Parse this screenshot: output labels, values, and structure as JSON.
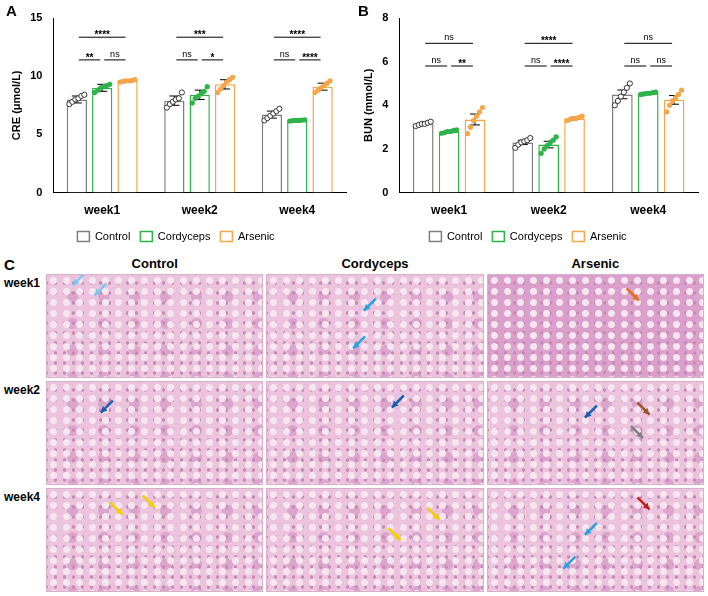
{
  "chart_data": [
    {
      "type": "bar",
      "panel": "A",
      "y_label": "CRE (μmol/L)",
      "categories": [
        "week1",
        "week2",
        "week4"
      ],
      "ylim": [
        0,
        15
      ],
      "yticks": [
        0,
        5,
        10,
        15
      ],
      "grid": false,
      "legend": "bottom",
      "series": [
        {
          "name": "Control",
          "color": "#7f7f7f",
          "marker": "circle_open",
          "values": [
            8.0,
            7.9,
            6.7
          ],
          "errors": [
            0.3,
            0.4,
            0.3
          ],
          "points": [
            [
              7.6,
              7.8,
              8.0,
              8.1,
              8.3,
              8.4
            ],
            [
              7.3,
              7.6,
              7.8,
              8.0,
              8.1,
              8.6
            ],
            [
              6.2,
              6.4,
              6.6,
              6.8,
              7.0,
              7.2
            ]
          ]
        },
        {
          "name": "Cordyceps",
          "color": "#2db34a",
          "marker": "circle",
          "values": [
            9.0,
            8.4,
            6.2
          ],
          "errors": [
            0.3,
            0.4,
            0.05
          ],
          "points": [
            [
              8.6,
              8.8,
              9.0,
              9.1,
              9.2,
              9.3
            ],
            [
              7.7,
              8.1,
              8.3,
              8.5,
              8.7,
              9.1
            ],
            [
              6.15,
              6.18,
              6.2,
              6.2,
              6.22,
              6.25
            ]
          ]
        },
        {
          "name": "Arsenic",
          "color": "#f5a64a",
          "marker": "circle",
          "values": [
            9.6,
            9.3,
            9.1
          ],
          "errors": [
            0.1,
            0.4,
            0.3
          ],
          "points": [
            [
              9.5,
              9.55,
              9.6,
              9.6,
              9.65,
              9.7
            ],
            [
              8.6,
              8.9,
              9.2,
              9.5,
              9.7,
              9.9
            ],
            [
              8.6,
              8.8,
              9.0,
              9.2,
              9.4,
              9.6
            ]
          ]
        }
      ],
      "significance": [
        {
          "category": "week1",
          "pair": [
            "Control",
            "Arsenic"
          ],
          "label": "****"
        },
        {
          "category": "week1",
          "pair": [
            "Control",
            "Cordyceps"
          ],
          "label": "**"
        },
        {
          "category": "week1",
          "pair": [
            "Cordyceps",
            "Arsenic"
          ],
          "label": "ns"
        },
        {
          "category": "week2",
          "pair": [
            "Control",
            "Arsenic"
          ],
          "label": "***"
        },
        {
          "category": "week2",
          "pair": [
            "Control",
            "Cordyceps"
          ],
          "label": "ns"
        },
        {
          "category": "week2",
          "pair": [
            "Cordyceps",
            "Arsenic"
          ],
          "label": "*"
        },
        {
          "category": "week4",
          "pair": [
            "Control",
            "Arsenic"
          ],
          "label": "****"
        },
        {
          "category": "week4",
          "pair": [
            "Control",
            "Cordyceps"
          ],
          "label": "ns"
        },
        {
          "category": "week4",
          "pair": [
            "Cordyceps",
            "Arsenic"
          ],
          "label": "****"
        }
      ]
    },
    {
      "type": "bar",
      "panel": "B",
      "y_label": "BUN (mmol/L)",
      "categories": [
        "week1",
        "week2",
        "week4"
      ],
      "ylim": [
        0,
        8
      ],
      "yticks": [
        0,
        2,
        4,
        6,
        8
      ],
      "grid": false,
      "legend": "bottom",
      "series": [
        {
          "name": "Control",
          "color": "#7f7f7f",
          "marker": "circle_open",
          "values": [
            3.15,
            2.3,
            4.5
          ],
          "errors": [
            0.05,
            0.1,
            0.2
          ],
          "points": [
            [
              3.05,
              3.1,
              3.15,
              3.15,
              3.2,
              3.25
            ],
            [
              2.05,
              2.2,
              2.3,
              2.35,
              2.4,
              2.5
            ],
            [
              4.0,
              4.2,
              4.4,
              4.6,
              4.8,
              5.0
            ]
          ]
        },
        {
          "name": "Cordyceps",
          "color": "#2db34a",
          "marker": "circle",
          "values": [
            2.8,
            2.2,
            4.55
          ],
          "errors": [
            0.05,
            0.15,
            0.03
          ],
          "points": [
            [
              2.72,
              2.75,
              2.8,
              2.8,
              2.85,
              2.88
            ],
            [
              1.8,
              2.0,
              2.15,
              2.3,
              2.4,
              2.55
            ],
            [
              4.5,
              4.52,
              4.55,
              4.55,
              4.58,
              4.6
            ]
          ]
        },
        {
          "name": "Arsenic",
          "color": "#f5a64a",
          "marker": "circle",
          "values": [
            3.35,
            3.4,
            4.25
          ],
          "errors": [
            0.25,
            0.05,
            0.2
          ],
          "points": [
            [
              2.7,
              3.0,
              3.3,
              3.5,
              3.7,
              3.9
            ],
            [
              3.3,
              3.35,
              3.4,
              3.4,
              3.45,
              3.5
            ],
            [
              3.7,
              4.0,
              4.2,
              4.35,
              4.5,
              4.7
            ]
          ]
        }
      ],
      "significance": [
        {
          "category": "week1",
          "pair": [
            "Control",
            "Arsenic"
          ],
          "label": "ns"
        },
        {
          "category": "week1",
          "pair": [
            "Control",
            "Cordyceps"
          ],
          "label": "ns"
        },
        {
          "category": "week1",
          "pair": [
            "Cordyceps",
            "Arsenic"
          ],
          "label": "**"
        },
        {
          "category": "week2",
          "pair": [
            "Control",
            "Arsenic"
          ],
          "label": "****"
        },
        {
          "category": "week2",
          "pair": [
            "Control",
            "Cordyceps"
          ],
          "label": "ns"
        },
        {
          "category": "week2",
          "pair": [
            "Cordyceps",
            "Arsenic"
          ],
          "label": "****"
        },
        {
          "category": "week4",
          "pair": [
            "Control",
            "Arsenic"
          ],
          "label": "ns"
        },
        {
          "category": "week4",
          "pair": [
            "Control",
            "Cordyceps"
          ],
          "label": "ns"
        },
        {
          "category": "week4",
          "pair": [
            "Cordyceps",
            "Arsenic"
          ],
          "label": "ns"
        }
      ]
    }
  ],
  "histology": {
    "panel": "C",
    "columns": [
      "Control",
      "Cordyceps",
      "Arsenic"
    ],
    "rows": [
      "week1",
      "week2",
      "week4"
    ]
  }
}
